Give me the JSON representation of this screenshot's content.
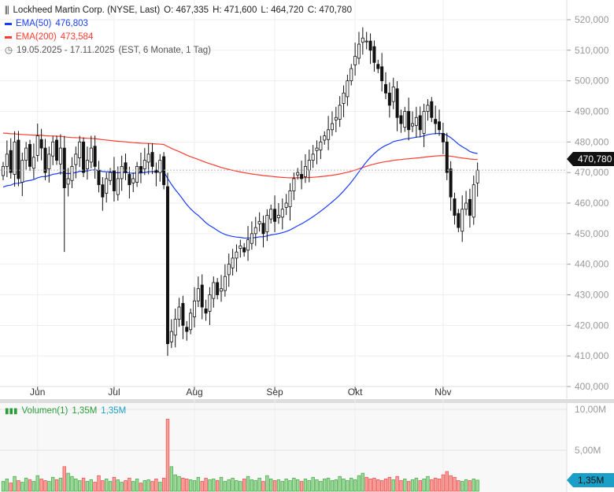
{
  "header": {
    "title": "Lockheed Martin Corp. (NYSE, Last)",
    "open": "O: 467,335",
    "high": "H: 471,600",
    "low": "L: 464,720",
    "close": "C: 470,780"
  },
  "ema50": {
    "label": "EMA(50)",
    "value": "476,803",
    "color": "#1a3cff"
  },
  "ema200": {
    "label": "EMA(200)",
    "value": "473,584",
    "color": "#ff3b30"
  },
  "range": {
    "dates": "19.05.2025 - 17.11.2025",
    "info": "(EST, 6 Monate, 1 Tag)"
  },
  "volume": {
    "label": "Volumen(1)",
    "v1": "1,35M",
    "v2": "1,35M",
    "badge": "1,35M",
    "ticks": [
      "10,00M",
      "5,00M"
    ],
    "tick_values": [
      10,
      5
    ]
  },
  "price_badge": "470,780",
  "chart_data": {
    "type": "candlestick",
    "ylim": [
      400,
      520
    ],
    "yticks": [
      "520,000",
      "510,000",
      "500,000",
      "490,000",
      "480,000",
      "470,000",
      "460,000",
      "450,000",
      "440,000",
      "430,000",
      "420,000",
      "410,000",
      "400,000"
    ],
    "ytick_values": [
      520,
      510,
      500,
      490,
      480,
      470,
      460,
      450,
      440,
      430,
      420,
      410,
      400
    ],
    "xticks": [
      {
        "label": "Jun",
        "day": 9
      },
      {
        "label": "Jul",
        "day": 29
      },
      {
        "label": "Aug",
        "day": 50
      },
      {
        "label": "Sep",
        "day": 71
      },
      {
        "label": "Okt",
        "day": 92
      },
      {
        "label": "Nov",
        "day": 115
      }
    ],
    "closes": [
      472,
      476,
      470,
      480,
      468,
      474,
      478,
      472,
      475,
      482,
      478,
      470,
      476,
      480,
      474,
      478,
      465,
      468,
      472,
      476,
      480,
      470,
      474,
      478,
      472,
      466,
      462,
      468,
      470,
      464,
      468,
      472,
      470,
      466,
      468,
      472,
      470,
      474,
      476,
      472,
      470,
      474,
      466,
      414,
      418,
      422,
      426,
      420,
      418,
      424,
      428,
      432,
      426,
      424,
      430,
      434,
      430,
      432,
      436,
      440,
      442,
      444,
      446,
      444,
      448,
      450,
      452,
      454,
      450,
      456,
      458,
      454,
      456,
      458,
      460,
      464,
      468,
      470,
      468,
      472,
      474,
      476,
      478,
      480,
      482,
      484,
      486,
      488,
      492,
      496,
      500,
      504,
      508,
      512,
      514,
      513,
      510,
      506,
      504,
      500,
      496,
      492,
      498,
      488,
      486,
      490,
      484,
      486,
      488,
      484,
      490,
      492,
      488,
      486,
      484,
      480,
      470,
      462,
      456,
      452,
      458,
      460,
      456,
      466,
      470.78
    ],
    "volumes_m": [
      1.2,
      1.5,
      1.0,
      1.8,
      1.3,
      1.1,
      1.6,
      1.4,
      1.2,
      1.9,
      1.5,
      1.3,
      1.2,
      1.7,
      1.4,
      1.6,
      3.0,
      2.2,
      1.8,
      1.5,
      1.3,
      1.6,
      1.2,
      1.4,
      1.1,
      1.9,
      1.3,
      1.5,
      1.2,
      1.7,
      1.4,
      1.1,
      1.3,
      1.6,
      1.2,
      1.5,
      1.0,
      1.3,
      1.4,
      1.2,
      1.5,
      1.1,
      1.6,
      8.8,
      3.0,
      2.0,
      1.8,
      1.6,
      1.5,
      1.4,
      1.3,
      1.7,
      1.2,
      1.6,
      1.4,
      1.5,
      1.3,
      1.7,
      1.2,
      1.4,
      1.6,
      1.3,
      1.2,
      1.5,
      1.8,
      1.4,
      1.3,
      1.6,
      1.2,
      1.9,
      1.5,
      1.3,
      1.4,
      1.2,
      1.5,
      1.3,
      1.6,
      1.4,
      1.2,
      1.5,
      1.3,
      1.7,
      1.4,
      1.2,
      1.5,
      1.6,
      1.3,
      1.4,
      1.8,
      1.5,
      1.3,
      1.6,
      1.4,
      1.9,
      2.2,
      1.7,
      1.5,
      1.6,
      1.4,
      1.3,
      1.5,
      1.7,
      1.4,
      1.8,
      1.3,
      1.5,
      1.2,
      1.4,
      1.6,
      1.3,
      1.5,
      1.8,
      1.4,
      1.6,
      1.5,
      2.0,
      2.4,
      1.9,
      1.7,
      1.3,
      1.2,
      1.4,
      1.3,
      1.5,
      1.35
    ],
    "ema50_seed": 465,
    "ema200_seed": 483
  }
}
